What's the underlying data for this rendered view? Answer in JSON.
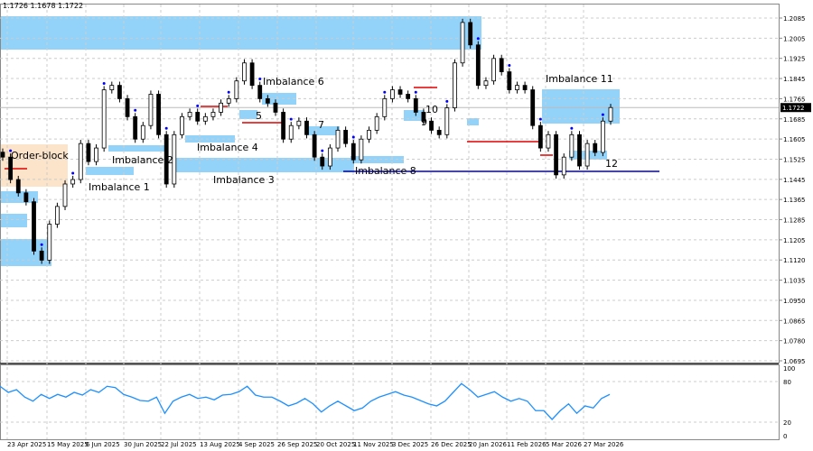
{
  "header": {
    "ohlc": "1.1726 1.1678 1.1722"
  },
  "chart_data": {
    "type": "candlestick",
    "symbol_current_price": "1.1722",
    "y_ticks": [
      "1.2085",
      "1.2005",
      "1.1925",
      "1.1845",
      "1.1765",
      "1.1685",
      "1.1605",
      "1.1525",
      "1.1445",
      "1.1365",
      "1.1285",
      "1.1205",
      "1.1120",
      "1.1035",
      "1.0950",
      "1.0865",
      "1.0780",
      "1.0695"
    ],
    "ylim": [
      1.0695,
      1.2085
    ],
    "x_ticks": [
      "23 Apr 2025",
      "15 May 2025",
      "6 Jun 2025",
      "30 Jun 2025",
      "22 Jul 2025",
      "13 Aug 2025",
      "4 Sep 2025",
      "26 Sep 2025",
      "20 Oct 2025",
      "11 Nov 2025",
      "3 Dec 2025",
      "26 Dec 2025",
      "20 Jan 2026",
      "11 Feb 2026",
      "5 Mar 2026",
      "27 Mar 2026"
    ],
    "grid": true,
    "closes": [
      1.1521,
      1.143,
      1.1376,
      1.134,
      1.114,
      1.1103,
      1.1249,
      1.1321,
      1.1412,
      1.143,
      1.1576,
      1.1503,
      1.1558,
      1.1794,
      1.1812,
      1.1758,
      1.1685,
      1.1594,
      1.1649,
      1.1776,
      1.1612,
      1.1412,
      1.1612,
      1.1685,
      1.1703,
      1.1667,
      1.1685,
      1.1703,
      1.174,
      1.1758,
      1.183,
      1.1903,
      1.1812,
      1.1758,
      1.174,
      1.1703,
      1.1594,
      1.1649,
      1.1667,
      1.1612,
      1.1521,
      1.1485,
      1.1558,
      1.163,
      1.1576,
      1.151,
      1.1594,
      1.163,
      1.1685,
      1.1758,
      1.1794,
      1.1776,
      1.1758,
      1.1703,
      1.1667,
      1.163,
      1.1612,
      1.1721,
      1.1903,
      1.2067,
      1.1976,
      1.1812,
      1.183,
      1.1921,
      1.1867,
      1.1794,
      1.1812,
      1.1794,
      1.1649,
      1.1558,
      1.1612,
      1.1449,
      1.1521,
      1.1612,
      1.1485,
      1.1576,
      1.154,
      1.1667,
      1.1722
    ],
    "rsi": {
      "ticks": [
        "100",
        "80",
        "20",
        "0"
      ],
      "ylim": [
        0,
        100
      ],
      "values": [
        73,
        64,
        68,
        57,
        51,
        61,
        55,
        61,
        57,
        64,
        60,
        68,
        64,
        73,
        71,
        61,
        57,
        52,
        51,
        57,
        33,
        51,
        57,
        61,
        55,
        57,
        53,
        60,
        61,
        65,
        73,
        60,
        57,
        57,
        51,
        44,
        48,
        55,
        47,
        35,
        44,
        51,
        44,
        37,
        41,
        51,
        57,
        61,
        65,
        60,
        57,
        52,
        47,
        44,
        51,
        64,
        77,
        68,
        57,
        61,
        65,
        57,
        51,
        55,
        51,
        37,
        37,
        24,
        37,
        47,
        33,
        44,
        41,
        55,
        61
      ]
    }
  },
  "annotations": {
    "order_block": "Order-block",
    "imb1": "Imbalance 1",
    "imb2": "Imbalance 2",
    "imb3": "Imbalance 3",
    "imb4": "Imbalance 4",
    "imb5": "5",
    "imb6": "Imbalance 6",
    "imb7": "7",
    "imb8": "Imbalance 8",
    "imb9": "9",
    "imb10": "10",
    "imb11": "Imbalance 11",
    "imb12": "12"
  },
  "colors": {
    "zone": "#87cefa",
    "order_block": "#fbe4c9",
    "level_red": "#e00000",
    "level_blue": "#0000cc",
    "rsi": "#1e90ff",
    "marker": "#0000ff"
  }
}
